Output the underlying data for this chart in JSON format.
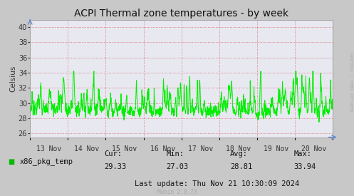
{
  "title": "ACPI Thermal zone temperatures - by week",
  "ylabel": "Celsius",
  "ylim": [
    25.5,
    41.0
  ],
  "yticks": [
    26,
    28,
    30,
    32,
    34,
    36,
    38,
    40
  ],
  "line_color": "#00ee00",
  "plot_bg_color": "#e8e8f0",
  "outer_bg_color": "#c8c8c8",
  "grid_color": "#ff6666",
  "xlabel_dates": [
    "13 Nov",
    "14 Nov",
    "15 Nov",
    "16 Nov",
    "17 Nov",
    "18 Nov",
    "19 Nov",
    "20 Nov"
  ],
  "legend_label": "x86_pkg_temp",
  "legend_color": "#00bb00",
  "cur_val": "29.33",
  "min_val": "27.03",
  "avg_val": "28.81",
  "max_val": "33.94",
  "last_update": "Last update: Thu Nov 21 10:30:09 2024",
  "munin_version": "Munin 2.0.73",
  "watermark": "RRDTOOL / TOBI OETIKER",
  "title_fontsize": 10,
  "axis_fontsize": 7,
  "legend_fontsize": 7.5,
  "stats_fontsize": 7.5
}
